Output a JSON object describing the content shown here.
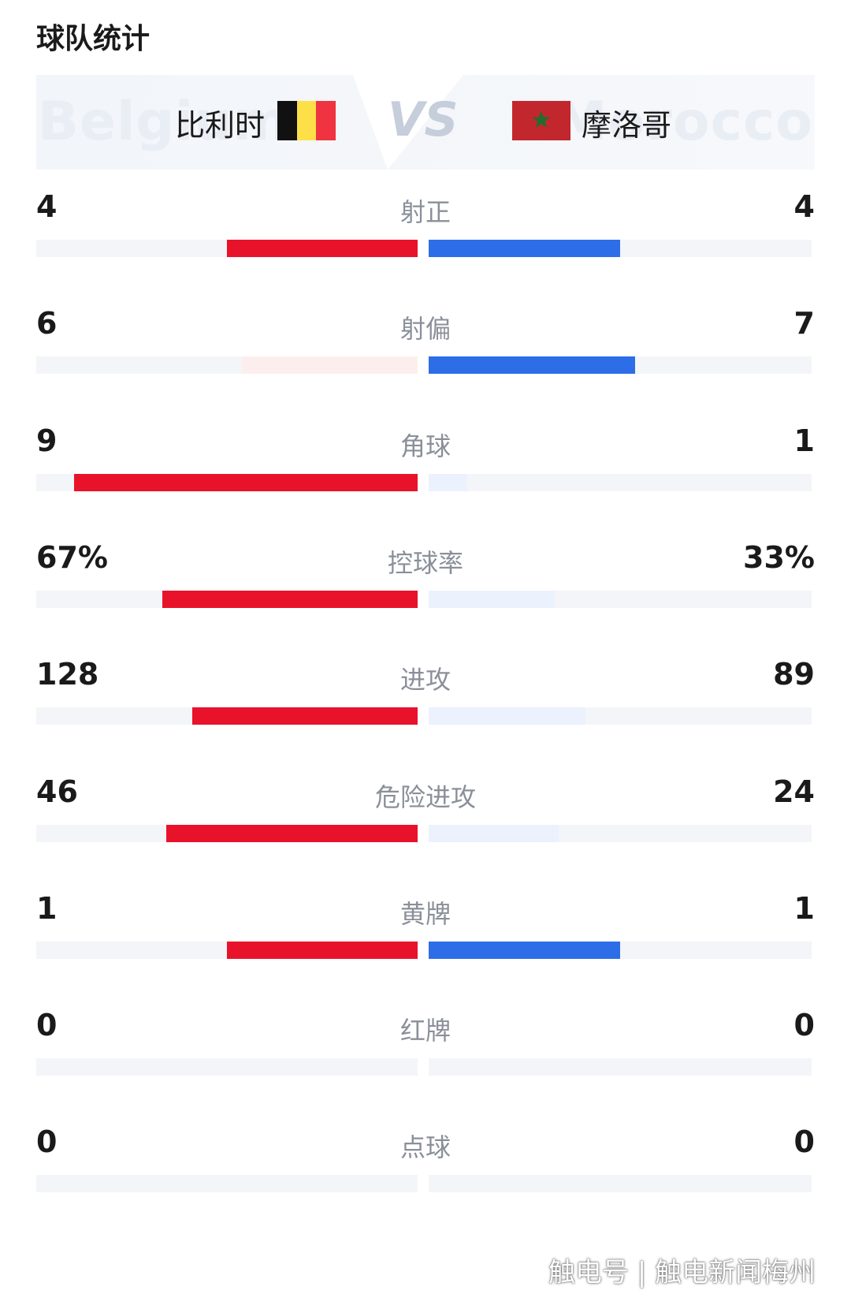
{
  "title": "球队统计",
  "teams": {
    "home": {
      "name": "比利时",
      "ghost": "Belgium",
      "flag_colors": [
        "#111111",
        "#fde047",
        "#ef3340"
      ]
    },
    "away": {
      "name": "摩洛哥",
      "ghost": "Morocco",
      "flag_bg": "#c1272d",
      "flag_star": "★"
    },
    "vs": "VS"
  },
  "colors": {
    "home_strong": "#e8132a",
    "home_weak": "#fdeeee",
    "away_strong": "#2d6ee8",
    "away_weak": "#ebf1fd",
    "track": "#f4f5f8"
  },
  "stats": [
    {
      "label": "射正",
      "home": "4",
      "away": "4",
      "home_frac": 0.5,
      "away_frac": 0.5,
      "home_strong": true,
      "away_strong": true
    },
    {
      "label": "射偏",
      "home": "6",
      "away": "7",
      "home_frac": 0.46,
      "away_frac": 0.54,
      "home_strong": false,
      "away_strong": true
    },
    {
      "label": "角球",
      "home": "9",
      "away": "1",
      "home_frac": 0.9,
      "away_frac": 0.1,
      "home_strong": true,
      "away_strong": false
    },
    {
      "label": "控球率",
      "home": "67%",
      "away": "33%",
      "home_frac": 0.67,
      "away_frac": 0.33,
      "home_strong": true,
      "away_strong": false
    },
    {
      "label": "进攻",
      "home": "128",
      "away": "89",
      "home_frac": 0.59,
      "away_frac": 0.41,
      "home_strong": true,
      "away_strong": false
    },
    {
      "label": "危险进攻",
      "home": "46",
      "away": "24",
      "home_frac": 0.66,
      "away_frac": 0.34,
      "home_strong": true,
      "away_strong": false
    },
    {
      "label": "黄牌",
      "home": "1",
      "away": "1",
      "home_frac": 0.5,
      "away_frac": 0.5,
      "home_strong": true,
      "away_strong": true
    },
    {
      "label": "红牌",
      "home": "0",
      "away": "0",
      "home_frac": 0,
      "away_frac": 0,
      "home_strong": false,
      "away_strong": false
    },
    {
      "label": "点球",
      "home": "0",
      "away": "0",
      "home_frac": 0,
      "away_frac": 0,
      "home_strong": false,
      "away_strong": false
    }
  ],
  "watermark": "触电号 | 触电新闻梅州"
}
